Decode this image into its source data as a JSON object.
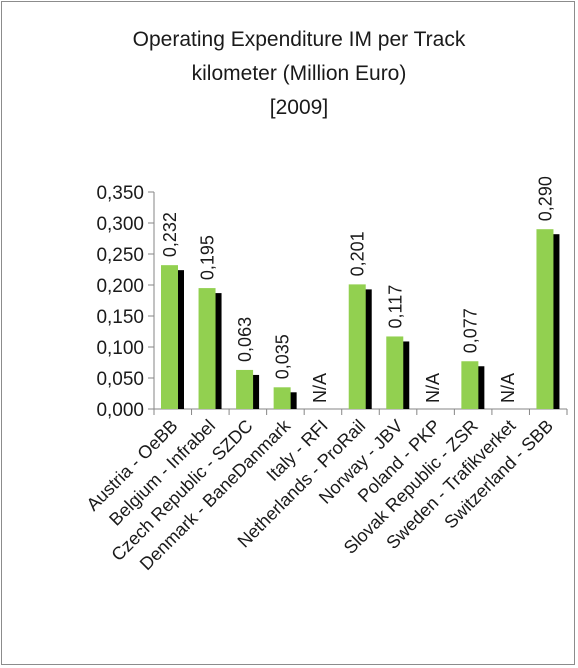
{
  "chart_data": {
    "type": "bar",
    "title_lines": [
      "Operating Expenditure IM per Track",
      "kilometer (Million Euro)",
      "[2009]"
    ],
    "categories": [
      "Austria - OeBB",
      "Belgium - Infrabel",
      "Czech Republic - SZDC",
      "Denmark - BaneDanmark",
      "Italy - RFI",
      "Netherlands - ProRail",
      "Norway - JBV",
      "Poland - PKP",
      "Slovak Republic - ZSR",
      "Sweden - Trafikverket",
      "Switzerland - SBB"
    ],
    "values": [
      0.232,
      0.195,
      0.063,
      0.035,
      null,
      0.201,
      0.117,
      null,
      0.077,
      null,
      0.29
    ],
    "value_labels": [
      "0,232",
      "0,195",
      "0,063",
      "0,035",
      "N/A",
      "0,201",
      "0,117",
      "N/A",
      "0,077",
      "N/A",
      "0,290"
    ],
    "y_ticks": [
      "0,000",
      "0,050",
      "0,100",
      "0,150",
      "0,200",
      "0,250",
      "0,300",
      "0,350"
    ],
    "ylim": [
      0,
      0.35
    ],
    "bar_color": "#92d050",
    "shadow_color": "#000000",
    "grid": false,
    "legend": "none"
  }
}
